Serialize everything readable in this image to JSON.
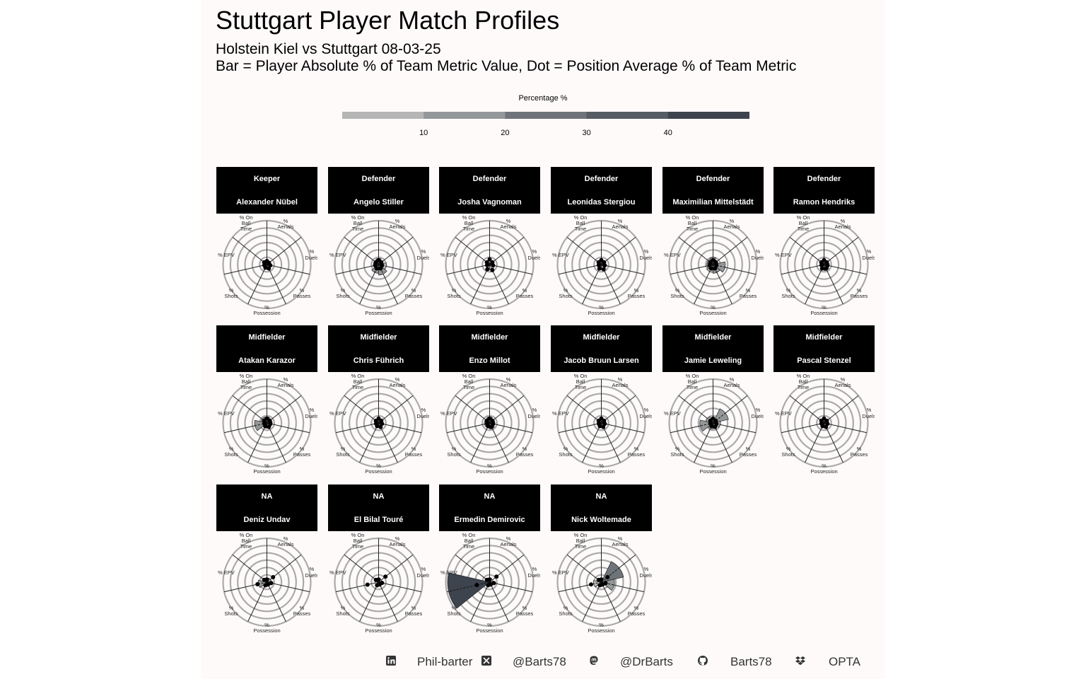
{
  "header": {
    "title": "Stuttgart Player Match Profiles",
    "subtitle_line1": "Holstein Kiel vs Stuttgart 08-03-25",
    "subtitle_line2": "Bar = Player Absolute % of Team Metric Value, Dot = Position Average % of Team Metric"
  },
  "legend": {
    "title": "Percentage %",
    "ticks": [
      "10",
      "20",
      "30",
      "40"
    ],
    "tick_values": [
      10,
      20,
      30,
      40
    ],
    "range": [
      0,
      50
    ],
    "colors": [
      "#b5b5b5",
      "#939799",
      "#6e747a",
      "#555c64",
      "#3d444e"
    ]
  },
  "axis_labels": [
    [
      "% On",
      "Ball",
      "Time"
    ],
    [
      "%",
      "Aerials"
    ],
    [
      "%",
      "Duels"
    ],
    [
      "%",
      "Passes"
    ],
    [
      "%",
      "Possession"
    ],
    [
      "%",
      "Shots"
    ],
    [
      "% EPV"
    ]
  ],
  "chart_data": {
    "type": "radar",
    "metrics": [
      "% On Ball Time",
      "% Aerials",
      "% Duels",
      "% Passes",
      "% Possession",
      "% Shots",
      "% EPV"
    ],
    "rlim": [
      0,
      50
    ],
    "players": [
      {
        "position": "Keeper",
        "name": "Alexander Nübel",
        "values": [
          3,
          2,
          3,
          4,
          3,
          2,
          3
        ],
        "avg": [
          4,
          3,
          4,
          5,
          4,
          3,
          4
        ]
      },
      {
        "position": "Defender",
        "name": "Angelo Stiller",
        "values": [
          7,
          5,
          9,
          12,
          10,
          6,
          6
        ],
        "avg": [
          5,
          4,
          4,
          5,
          5,
          4,
          4
        ]
      },
      {
        "position": "Defender",
        "name": "Josha Vagnoman",
        "values": [
          4,
          3,
          5,
          6,
          4,
          2,
          3
        ],
        "avg": [
          6,
          4,
          4,
          7,
          6,
          3,
          4
        ]
      },
      {
        "position": "Defender",
        "name": "Leonidas Stergiou",
        "values": [
          5,
          4,
          5,
          6,
          5,
          3,
          4
        ],
        "avg": [
          5,
          4,
          4,
          6,
          5,
          3,
          4
        ]
      },
      {
        "position": "Defender",
        "name": "Maximilian Mittelstädt",
        "values": [
          8,
          6,
          14,
          10,
          9,
          7,
          7
        ],
        "avg": [
          5,
          4,
          4,
          5,
          5,
          4,
          4
        ]
      },
      {
        "position": "Defender",
        "name": "Ramon Hendriks",
        "values": [
          5,
          4,
          6,
          7,
          5,
          3,
          4
        ],
        "avg": [
          5,
          4,
          4,
          5,
          5,
          3,
          4
        ]
      },
      {
        "position": "Midfielder",
        "name": "Atakan Karazor",
        "values": [
          7,
          6,
          6,
          5,
          6,
          14,
          7
        ],
        "avg": [
          5,
          4,
          4,
          5,
          4,
          3,
          4
        ]
      },
      {
        "position": "Midfielder",
        "name": "Chris Führich",
        "values": [
          4,
          3,
          4,
          5,
          4,
          3,
          3
        ],
        "avg": [
          5,
          4,
          4,
          5,
          4,
          3,
          4
        ]
      },
      {
        "position": "Midfielder",
        "name": "Enzo Millot",
        "values": [
          7,
          6,
          6,
          7,
          6,
          6,
          6
        ],
        "avg": [
          5,
          4,
          4,
          5,
          4,
          3,
          4
        ]
      },
      {
        "position": "Midfielder",
        "name": "Jacob Bruun Larsen",
        "values": [
          5,
          4,
          5,
          5,
          5,
          4,
          5
        ],
        "avg": [
          5,
          4,
          4,
          5,
          4,
          3,
          4
        ]
      },
      {
        "position": "Midfielder",
        "name": "Jamie Leweling",
        "values": [
          6,
          18,
          8,
          6,
          7,
          15,
          8
        ],
        "avg": [
          5,
          4,
          4,
          5,
          4,
          3,
          4
        ]
      },
      {
        "position": "Midfielder",
        "name": "Pascal Stenzel",
        "values": [
          4,
          3,
          4,
          4,
          4,
          3,
          3
        ],
        "avg": [
          5,
          4,
          4,
          5,
          4,
          3,
          4
        ]
      },
      {
        "position": "NA",
        "name": "Deniz Undav",
        "values": [
          3,
          5,
          4,
          3,
          4,
          10,
          4
        ],
        "avg": [
          3,
          9,
          5,
          3,
          4,
          11,
          4
        ]
      },
      {
        "position": "NA",
        "name": "El Bilal Touré",
        "values": [
          3,
          4,
          4,
          3,
          3,
          4,
          3
        ],
        "avg": [
          3,
          10,
          4,
          3,
          4,
          13,
          4
        ]
      },
      {
        "position": "NA",
        "name": "Ermedin Demirovic",
        "values": [
          5,
          4,
          5,
          4,
          4,
          48,
          5
        ],
        "avg": [
          3,
          10,
          5,
          3,
          4,
          15,
          4
        ]
      },
      {
        "position": "NA",
        "name": "Nick Woltemade",
        "values": [
          4,
          26,
          15,
          5,
          5,
          9,
          5
        ],
        "avg": [
          3,
          9,
          5,
          3,
          4,
          12,
          4
        ]
      }
    ]
  },
  "footer": {
    "linkedin": "Phil-barter",
    "x": "@Barts78",
    "mastodon": "@DrBarts",
    "github": "Barts78",
    "source": "OPTA",
    "icons": [
      "linkedin-icon",
      "x-icon",
      "mastodon-icon",
      "github-icon",
      "dropbox-icon"
    ]
  }
}
